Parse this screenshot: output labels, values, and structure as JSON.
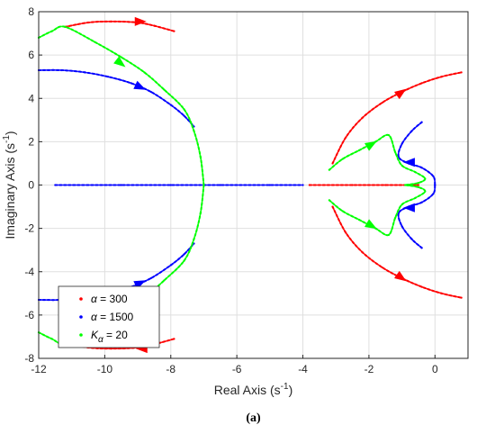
{
  "chart_data": {
    "type": "scatter",
    "title": "",
    "xlabel": "Real Axis (s",
    "xlabel_sup": "-1",
    "xlabel_close": ")",
    "ylabel": "Imaginary Axis (s",
    "ylabel_sup": "-1",
    "ylabel_close": ")",
    "caption": "(a)",
    "xlim": [
      -12,
      1
    ],
    "ylim": [
      -8,
      8
    ],
    "xticks": [
      -12,
      -10,
      -8,
      -6,
      -4,
      -2,
      0
    ],
    "yticks": [
      -8,
      -6,
      -4,
      -2,
      0,
      2,
      4,
      6,
      8
    ],
    "grid": true,
    "legend_position": "bottom-left",
    "legend": [
      {
        "prefix": "α",
        "text": " = 300",
        "color": "#ff0000"
      },
      {
        "prefix": "α",
        "text": " = 1500",
        "color": "#0000ff"
      },
      {
        "prefix": "K",
        "sub": "α",
        "text": " = 20",
        "color": "#00ff00"
      }
    ],
    "series": [
      {
        "name": "α = 300",
        "color": "#ff0000",
        "branches": [
          [
            [
              -11.2,
              7.3
            ],
            [
              -10.5,
              7.5
            ],
            [
              -9.8,
              7.55
            ],
            [
              -9.0,
              7.5
            ],
            [
              -8.5,
              7.35
            ],
            [
              -7.9,
              7.1
            ]
          ],
          [
            [
              -11.2,
              -7.3
            ],
            [
              -10.5,
              -7.5
            ],
            [
              -9.8,
              -7.55
            ],
            [
              -9.0,
              -7.5
            ],
            [
              -8.5,
              -7.35
            ],
            [
              -7.9,
              -7.1
            ]
          ],
          [
            [
              -3.1,
              1.0
            ],
            [
              -2.7,
              2.2
            ],
            [
              -2.2,
              3.1
            ],
            [
              -1.6,
              3.8
            ],
            [
              -1.0,
              4.3
            ],
            [
              -0.4,
              4.7
            ],
            [
              0.2,
              5.0
            ],
            [
              0.8,
              5.2
            ]
          ],
          [
            [
              -3.1,
              -1.0
            ],
            [
              -2.7,
              -2.2
            ],
            [
              -2.2,
              -3.1
            ],
            [
              -1.6,
              -3.8
            ],
            [
              -1.0,
              -4.3
            ],
            [
              -0.4,
              -4.7
            ],
            [
              0.2,
              -5.0
            ],
            [
              0.8,
              -5.2
            ]
          ],
          [
            [
              -3.8,
              0
            ],
            [
              -2.5,
              0
            ],
            [
              -1.5,
              0
            ],
            [
              -0.8,
              0
            ],
            [
              -0.5,
              0
            ]
          ]
        ],
        "arrows": [
          {
            "x": -8.9,
            "y": 7.55,
            "angle": 0
          },
          {
            "x": -8.9,
            "y": -7.55,
            "angle": 180
          },
          {
            "x": -1.0,
            "y": 4.3,
            "angle": -35
          },
          {
            "x": -1.0,
            "y": -4.3,
            "angle": 35
          }
        ]
      },
      {
        "name": "α = 1500",
        "color": "#0000ff",
        "branches": [
          [
            [
              -12.0,
              5.3
            ],
            [
              -11.3,
              5.3
            ],
            [
              -10.6,
              5.2
            ],
            [
              -9.9,
              5.0
            ],
            [
              -9.2,
              4.7
            ],
            [
              -8.6,
              4.3
            ],
            [
              -8.0,
              3.7
            ],
            [
              -7.6,
              3.2
            ],
            [
              -7.3,
              2.7
            ]
          ],
          [
            [
              -12.0,
              -5.3
            ],
            [
              -11.3,
              -5.3
            ],
            [
              -10.6,
              -5.2
            ],
            [
              -9.9,
              -5.0
            ],
            [
              -9.2,
              -4.7
            ],
            [
              -8.6,
              -4.3
            ],
            [
              -8.0,
              -3.7
            ],
            [
              -7.6,
              -3.2
            ],
            [
              -7.3,
              -2.7
            ]
          ],
          [
            [
              -11.5,
              0
            ],
            [
              -9.5,
              0
            ],
            [
              -8.0,
              0
            ],
            [
              -6.5,
              0
            ],
            [
              -5.0,
              0
            ],
            [
              -4.0,
              0
            ]
          ],
          [
            [
              -0.4,
              2.9
            ],
            [
              -0.7,
              2.5
            ],
            [
              -1.0,
              1.9
            ],
            [
              -1.1,
              1.3
            ],
            [
              -0.8,
              1.0
            ],
            [
              -0.4,
              0.8
            ],
            [
              -0.05,
              0.4
            ],
            [
              0,
              0
            ]
          ],
          [
            [
              -0.4,
              -2.9
            ],
            [
              -0.7,
              -2.5
            ],
            [
              -1.0,
              -1.9
            ],
            [
              -1.1,
              -1.3
            ],
            [
              -0.8,
              -1.0
            ],
            [
              -0.4,
              -0.8
            ],
            [
              -0.05,
              -0.4
            ],
            [
              0,
              0
            ]
          ]
        ],
        "arrows": [
          {
            "x": -8.9,
            "y": 4.5,
            "angle": 25
          },
          {
            "x": -8.9,
            "y": -4.5,
            "angle": -25
          },
          {
            "x": -0.8,
            "y": 1.05,
            "angle": 180
          },
          {
            "x": -0.8,
            "y": -1.05,
            "angle": 180
          }
        ]
      },
      {
        "name": "K_α = 20",
        "color": "#00ff00",
        "branches": [
          [
            [
              -12.0,
              6.8
            ],
            [
              -11.6,
              7.1
            ],
            [
              -11.2,
              7.3
            ],
            [
              -10.3,
              6.6
            ],
            [
              -9.5,
              5.9
            ],
            [
              -8.8,
              5.2
            ],
            [
              -8.2,
              4.4
            ],
            [
              -7.6,
              3.5
            ],
            [
              -7.3,
              2.5
            ],
            [
              -7.1,
              1.3
            ],
            [
              -7.0,
              0
            ]
          ],
          [
            [
              -12.0,
              -6.8
            ],
            [
              -11.6,
              -7.1
            ],
            [
              -11.2,
              -7.3
            ],
            [
              -10.3,
              -6.6
            ],
            [
              -9.5,
              -5.9
            ],
            [
              -8.8,
              -5.2
            ],
            [
              -8.2,
              -4.4
            ],
            [
              -7.6,
              -3.5
            ],
            [
              -7.3,
              -2.5
            ],
            [
              -7.1,
              -1.3
            ],
            [
              -7.0,
              0
            ]
          ],
          [
            [
              -3.2,
              0.7
            ],
            [
              -2.8,
              1.2
            ],
            [
              -2.3,
              1.6
            ],
            [
              -1.8,
              2.0
            ],
            [
              -1.4,
              2.3
            ],
            [
              -1.2,
              1.5
            ],
            [
              -1.0,
              0.9
            ],
            [
              -0.6,
              0.6
            ],
            [
              -0.3,
              0.3
            ],
            [
              -0.5,
              0.1
            ],
            [
              -0.9,
              0
            ]
          ],
          [
            [
              -3.2,
              -0.7
            ],
            [
              -2.8,
              -1.2
            ],
            [
              -2.3,
              -1.6
            ],
            [
              -1.8,
              -2.0
            ],
            [
              -1.4,
              -2.3
            ],
            [
              -1.2,
              -1.5
            ],
            [
              -1.0,
              -0.9
            ],
            [
              -0.6,
              -0.6
            ],
            [
              -0.3,
              -0.3
            ],
            [
              -0.5,
              -0.1
            ],
            [
              -0.9,
              0
            ]
          ]
        ],
        "arrows": [
          {
            "x": -9.5,
            "y": 5.6,
            "angle": 38
          },
          {
            "x": -9.5,
            "y": -5.6,
            "angle": -38
          },
          {
            "x": -1.9,
            "y": 1.9,
            "angle": -30
          },
          {
            "x": -1.9,
            "y": -1.9,
            "angle": 30
          }
        ]
      }
    ]
  }
}
